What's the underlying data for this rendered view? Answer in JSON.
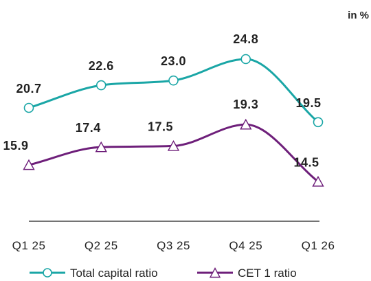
{
  "colors": {
    "total": "#1aa6a6",
    "cet1": "#6e1f7a",
    "axis": "#222222",
    "text": "#222222"
  },
  "chart_data": {
    "type": "line",
    "unit_label": "in %",
    "categories": [
      "Q1 25",
      "Q2 25",
      "Q3 25",
      "Q4 25",
      "Q1 26"
    ],
    "series": [
      {
        "name": "Total capital ratio",
        "values": [
          20.7,
          22.6,
          23.0,
          24.8,
          19.5
        ],
        "labels": [
          "20.7",
          "22.6",
          "23.0",
          "24.8",
          "19.5"
        ],
        "marker": "circle",
        "color": "#1aa6a6"
      },
      {
        "name": "CET 1 ratio",
        "values": [
          15.9,
          17.4,
          17.5,
          19.3,
          14.5
        ],
        "labels": [
          "15.9",
          "17.4",
          "17.5",
          "19.3",
          "14.5"
        ],
        "marker": "triangle",
        "color": "#6e1f7a"
      }
    ],
    "legend_position": "bottom",
    "grid": false,
    "smooth": true
  }
}
